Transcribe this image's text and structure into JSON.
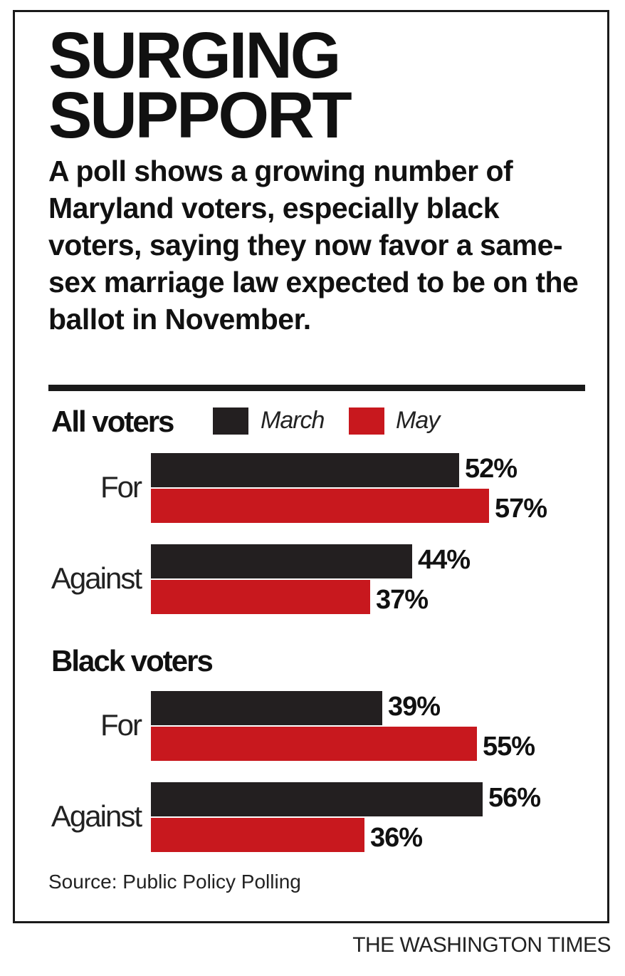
{
  "title": "SURGING SUPPORT",
  "subtitle": "A poll shows a growing number of Maryland voters, especially black voters, saying they now favor a same-sex marriage law expected to be on the ballot in November.",
  "source": "Source: Public Policy Polling",
  "credit": "THE WASHINGTON TIMES",
  "colors": {
    "march": "#231f20",
    "may": "#c8181e"
  },
  "chart_data": {
    "type": "bar",
    "orientation": "horizontal",
    "legend": {
      "placement": "top",
      "entries": [
        "March",
        "May"
      ]
    },
    "series_names": [
      "March",
      "May"
    ],
    "groups": [
      {
        "name": "All voters",
        "categories": [
          {
            "label": "For",
            "values": [
              52,
              57
            ],
            "value_labels": [
              "52%",
              "57%"
            ]
          },
          {
            "label": "Against",
            "values": [
              44,
              37
            ],
            "value_labels": [
              "44%",
              "37%"
            ]
          }
        ]
      },
      {
        "name": "Black voters",
        "categories": [
          {
            "label": "For",
            "values": [
              39,
              55
            ],
            "value_labels": [
              "39%",
              "55%"
            ]
          },
          {
            "label": "Against",
            "values": [
              56,
              36
            ],
            "value_labels": [
              "56%",
              "36%"
            ]
          }
        ]
      }
    ],
    "xlim": [
      0,
      100
    ],
    "grid": false
  }
}
